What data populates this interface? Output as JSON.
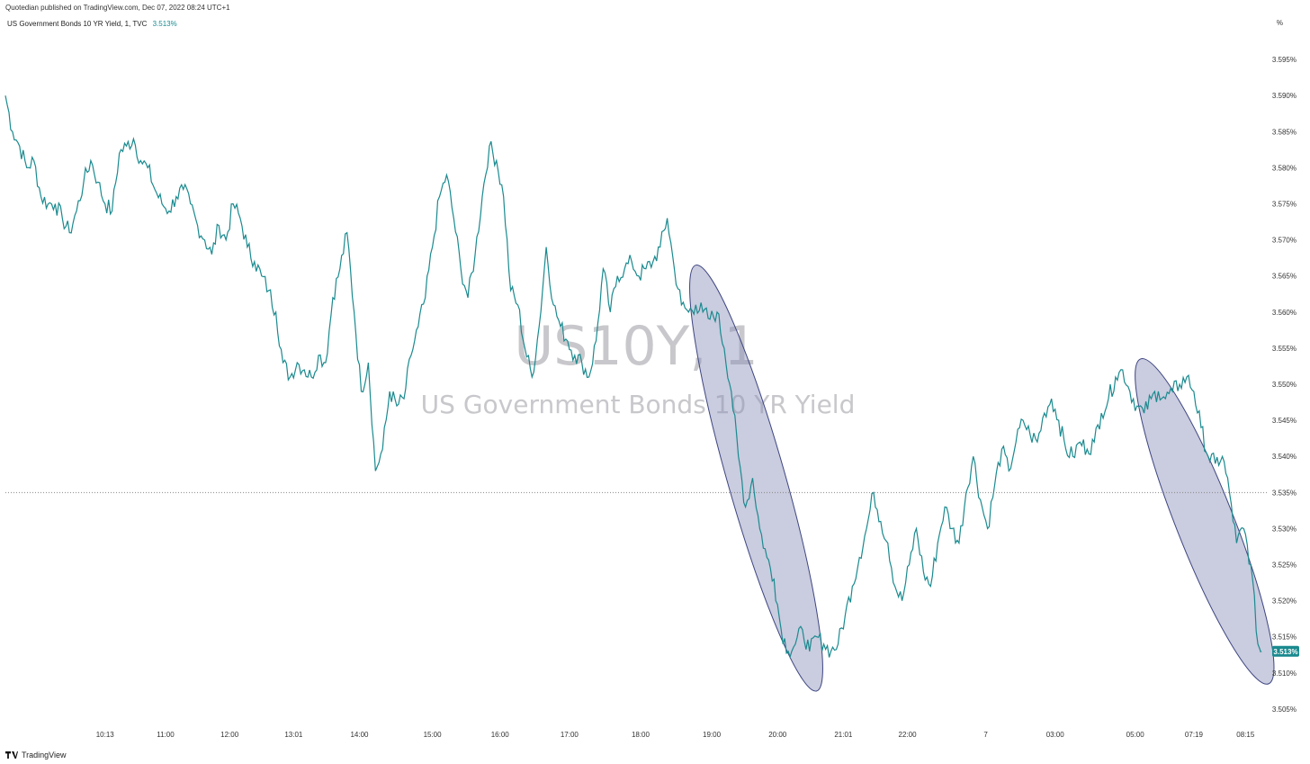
{
  "header": {
    "published_line": "Quotedian published on TradingView.com, Dec 07, 2022 08:24 UTC+1",
    "symbol_line": "US Government Bonds 10 YR Yield, 1, TVC",
    "symbol_value": "3.513%",
    "unit": "%"
  },
  "watermark": {
    "ticker": "US10Y, 1",
    "name": "US Government Bonds 10 YR Yield"
  },
  "footer": {
    "brand": "TradingView"
  },
  "colors": {
    "line": "#1a8a8f",
    "ellipse_fill": "#8a8fb8",
    "ellipse_stroke": "#3d4580",
    "badge": "#1a8a8f"
  },
  "chart_data": {
    "type": "line",
    "title": "",
    "xlabel": "",
    "ylabel": "",
    "ylim": [
      3.5025,
      3.5995
    ],
    "y_ticks": [
      "3.595%",
      "3.590%",
      "3.585%",
      "3.580%",
      "3.575%",
      "3.570%",
      "3.565%",
      "3.560%",
      "3.555%",
      "3.550%",
      "3.545%",
      "3.540%",
      "3.535%",
      "3.530%",
      "3.525%",
      "3.520%",
      "3.515%",
      "3.510%",
      "3.505%"
    ],
    "y_tick_values": [
      3.595,
      3.59,
      3.585,
      3.58,
      3.575,
      3.57,
      3.565,
      3.56,
      3.555,
      3.55,
      3.545,
      3.54,
      3.535,
      3.53,
      3.525,
      3.52,
      3.515,
      3.51,
      3.505
    ],
    "x_ticks": [
      "10:13",
      "11:00",
      "12:00",
      "13:01",
      "14:00",
      "15:00",
      "16:00",
      "17:00",
      "18:00",
      "19:00",
      "20:00",
      "21:01",
      "22:00",
      "7",
      "03:00",
      "05:00",
      "07:19",
      "08:15"
    ],
    "x_tick_bar_index": [
      56,
      90,
      126,
      162,
      199,
      240,
      278,
      317,
      357,
      397,
      434,
      471,
      507,
      551,
      590,
      635,
      668,
      697
    ],
    "series": [
      {
        "name": "",
        "points": [
          [
            0,
            3.59
          ],
          [
            4,
            3.585
          ],
          [
            8,
            3.583
          ],
          [
            12,
            3.58
          ],
          [
            16,
            3.581
          ],
          [
            20,
            3.576
          ],
          [
            24,
            3.575
          ],
          [
            28,
            3.575
          ],
          [
            32,
            3.573
          ],
          [
            36,
            3.571
          ],
          [
            40,
            3.574
          ],
          [
            44,
            3.578
          ],
          [
            48,
            3.581
          ],
          [
            52,
            3.578
          ],
          [
            56,
            3.575
          ],
          [
            60,
            3.574
          ],
          [
            64,
            3.582
          ],
          [
            68,
            3.583
          ],
          [
            72,
            3.584
          ],
          [
            76,
            3.581
          ],
          [
            80,
            3.58
          ],
          [
            84,
            3.577
          ],
          [
            88,
            3.575
          ],
          [
            92,
            3.574
          ],
          [
            96,
            3.576
          ],
          [
            100,
            3.577
          ],
          [
            104,
            3.575
          ],
          [
            108,
            3.572
          ],
          [
            112,
            3.57
          ],
          [
            116,
            3.568
          ],
          [
            120,
            3.572
          ],
          [
            124,
            3.57
          ],
          [
            128,
            3.575
          ],
          [
            132,
            3.573
          ],
          [
            136,
            3.569
          ],
          [
            140,
            3.567
          ],
          [
            144,
            3.565
          ],
          [
            148,
            3.563
          ],
          [
            152,
            3.56
          ],
          [
            156,
            3.553
          ],
          [
            160,
            3.551
          ],
          [
            164,
            3.553
          ],
          [
            168,
            3.552
          ],
          [
            172,
            3.551
          ],
          [
            176,
            3.554
          ],
          [
            180,
            3.553
          ],
          [
            184,
            3.562
          ],
          [
            188,
            3.566
          ],
          [
            192,
            3.571
          ],
          [
            196,
            3.56
          ],
          [
            200,
            3.549
          ],
          [
            204,
            3.553
          ],
          [
            208,
            3.538
          ],
          [
            212,
            3.541
          ],
          [
            216,
            3.549
          ],
          [
            220,
            3.547
          ],
          [
            224,
            3.548
          ],
          [
            228,
            3.554
          ],
          [
            232,
            3.558
          ],
          [
            236,
            3.562
          ],
          [
            240,
            3.569
          ],
          [
            244,
            3.576
          ],
          [
            248,
            3.579
          ],
          [
            252,
            3.573
          ],
          [
            256,
            3.566
          ],
          [
            260,
            3.562
          ],
          [
            264,
            3.568
          ],
          [
            268,
            3.576
          ],
          [
            272,
            3.583
          ],
          [
            276,
            3.581
          ],
          [
            280,
            3.576
          ],
          [
            284,
            3.563
          ],
          [
            288,
            3.561
          ],
          [
            292,
            3.555
          ],
          [
            296,
            3.551
          ],
          [
            300,
            3.558
          ],
          [
            304,
            3.569
          ],
          [
            308,
            3.561
          ],
          [
            312,
            3.558
          ],
          [
            316,
            3.556
          ],
          [
            320,
            3.554
          ],
          [
            324,
            3.553
          ],
          [
            328,
            3.551
          ],
          [
            332,
            3.556
          ],
          [
            336,
            3.566
          ],
          [
            340,
            3.56
          ],
          [
            344,
            3.565
          ],
          [
            348,
            3.566
          ],
          [
            352,
            3.567
          ],
          [
            356,
            3.565
          ],
          [
            360,
            3.566
          ],
          [
            364,
            3.567
          ],
          [
            368,
            3.569
          ],
          [
            372,
            3.573
          ],
          [
            376,
            3.566
          ],
          [
            380,
            3.561
          ],
          [
            384,
            3.56
          ],
          [
            388,
            3.561
          ],
          [
            392,
            3.56
          ],
          [
            396,
            3.559
          ],
          [
            400,
            3.56
          ],
          [
            404,
            3.555
          ],
          [
            408,
            3.549
          ],
          [
            412,
            3.54
          ],
          [
            416,
            3.533
          ],
          [
            420,
            3.537
          ],
          [
            424,
            3.53
          ],
          [
            428,
            3.526
          ],
          [
            432,
            3.523
          ],
          [
            436,
            3.516
          ],
          [
            440,
            3.513
          ],
          [
            444,
            3.514
          ],
          [
            448,
            3.516
          ],
          [
            452,
            3.513
          ],
          [
            456,
            3.515
          ],
          [
            460,
            3.514
          ],
          [
            464,
            3.513
          ],
          [
            468,
            3.514
          ],
          [
            472,
            3.518
          ],
          [
            476,
            3.522
          ],
          [
            480,
            3.526
          ],
          [
            484,
            3.53
          ],
          [
            488,
            3.535
          ],
          [
            492,
            3.531
          ],
          [
            496,
            3.528
          ],
          [
            500,
            3.522
          ],
          [
            504,
            3.52
          ],
          [
            508,
            3.525
          ],
          [
            512,
            3.53
          ],
          [
            516,
            3.524
          ],
          [
            520,
            3.522
          ],
          [
            524,
            3.528
          ],
          [
            528,
            3.533
          ],
          [
            532,
            3.53
          ],
          [
            536,
            3.528
          ],
          [
            540,
            3.535
          ],
          [
            544,
            3.54
          ],
          [
            548,
            3.534
          ],
          [
            552,
            3.53
          ],
          [
            556,
            3.536
          ],
          [
            560,
            3.541
          ],
          [
            564,
            3.538
          ],
          [
            568,
            3.542
          ],
          [
            572,
            3.545
          ],
          [
            576,
            3.543
          ],
          [
            580,
            3.542
          ],
          [
            584,
            3.546
          ],
          [
            588,
            3.548
          ],
          [
            592,
            3.545
          ],
          [
            596,
            3.541
          ],
          [
            600,
            3.54
          ],
          [
            604,
            3.542
          ],
          [
            608,
            3.541
          ],
          [
            612,
            3.542
          ],
          [
            616,
            3.546
          ],
          [
            620,
            3.548
          ],
          [
            624,
            3.551
          ],
          [
            628,
            3.552
          ],
          [
            632,
            3.549
          ],
          [
            636,
            3.547
          ],
          [
            640,
            3.546
          ],
          [
            644,
            3.548
          ],
          [
            648,
            3.549
          ],
          [
            652,
            3.548
          ],
          [
            656,
            3.549
          ],
          [
            660,
            3.55
          ],
          [
            664,
            3.551
          ],
          [
            668,
            3.549
          ],
          [
            672,
            3.544
          ],
          [
            676,
            3.54
          ],
          [
            680,
            3.539
          ],
          [
            684,
            3.54
          ],
          [
            688,
            3.535
          ],
          [
            692,
            3.528
          ],
          [
            696,
            3.53
          ],
          [
            700,
            3.525
          ],
          [
            704,
            3.514
          ],
          [
            706,
            3.513
          ]
        ],
        "last_value": 3.513,
        "last_value_label": "3.513%"
      }
    ],
    "reference_line_value": 3.535,
    "highlight_ellipses": [
      {
        "from_bar": 388,
        "to_bar": 456,
        "y_top": 3.5665,
        "y_bottom": 3.5075
      },
      {
        "from_bar": 638,
        "to_bar": 710,
        "y_top": 3.5535,
        "y_bottom": 3.5085
      }
    ],
    "x_domain": [
      0,
      710
    ],
    "grid": false,
    "legend": "none"
  }
}
